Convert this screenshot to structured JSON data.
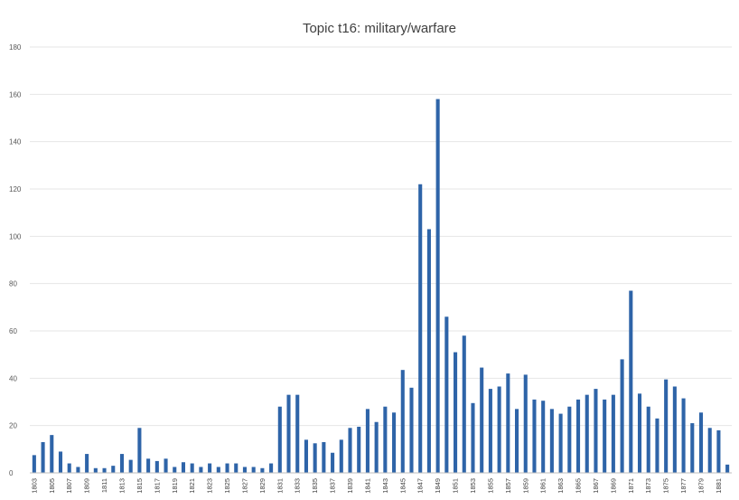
{
  "chart_data": {
    "type": "bar",
    "title": "Topic t16: military/warfare",
    "xlabel": "",
    "ylabel": "",
    "ylim": [
      0,
      180
    ],
    "yticks": [
      0,
      20,
      40,
      60,
      80,
      100,
      120,
      140,
      160,
      180
    ],
    "grid": true,
    "legend": "none",
    "bar_color": "#2e64a8",
    "categories": [
      "1803",
      "1804",
      "1805",
      "1806",
      "1807",
      "1808",
      "1809",
      "1810",
      "1811",
      "1812",
      "1813",
      "1814",
      "1815",
      "1816",
      "1817",
      "1818",
      "1819",
      "1820",
      "1821",
      "1822",
      "1823",
      "1824",
      "1825",
      "1826",
      "1827",
      "1828",
      "1829",
      "1830",
      "1831",
      "1832",
      "1833",
      "1834",
      "1835",
      "1836",
      "1837",
      "1838",
      "1839",
      "1840",
      "1841",
      "1842",
      "1843",
      "1844",
      "1845",
      "1846",
      "1847",
      "1848",
      "1849",
      "1850",
      "1851",
      "1852",
      "1853",
      "1854",
      "1855",
      "1856",
      "1857",
      "1858",
      "1859",
      "1860",
      "1861",
      "1862",
      "1863",
      "1864",
      "1865",
      "1866",
      "1867",
      "1868",
      "1869",
      "1870",
      "1871",
      "1872",
      "1873",
      "1874",
      "1875",
      "1876",
      "1877",
      "1878",
      "1879",
      "1880",
      "1881",
      "1882"
    ],
    "values": [
      7.5,
      13,
      16,
      9,
      4,
      2.5,
      8,
      2,
      2,
      3,
      8,
      5.5,
      19,
      6,
      5,
      6,
      2.5,
      4.5,
      4,
      2.5,
      4,
      2.5,
      4,
      4,
      2.5,
      2.5,
      2,
      4,
      28,
      33,
      33,
      14,
      12.5,
      13,
      8.5,
      14,
      19,
      19.5,
      27,
      21.5,
      28,
      25.5,
      43.5,
      36,
      122,
      103,
      158,
      66,
      51,
      58,
      29.5,
      44.5,
      35.5,
      36.5,
      42,
      27,
      41.5,
      31,
      30.5,
      27,
      25,
      28,
      31,
      33,
      35.5,
      31,
      33,
      48,
      77,
      33.5,
      28,
      23,
      39.5,
      36.5,
      31.5,
      21,
      25.5,
      19,
      18,
      3.5
    ],
    "xtick_labels": [
      "1803",
      "1805",
      "1807",
      "1809",
      "1811",
      "1813",
      "1815",
      "1817",
      "1819",
      "1821",
      "1823",
      "1825",
      "1827",
      "1829",
      "1831",
      "1833",
      "1835",
      "1837",
      "1839",
      "1841",
      "1843",
      "1845",
      "1847",
      "1849",
      "1851",
      "1853",
      "1855",
      "1857",
      "1859",
      "1861",
      "1863",
      "1865",
      "1867",
      "1869",
      "1871",
      "1873",
      "1875",
      "1877",
      "1879",
      "1881"
    ]
  }
}
